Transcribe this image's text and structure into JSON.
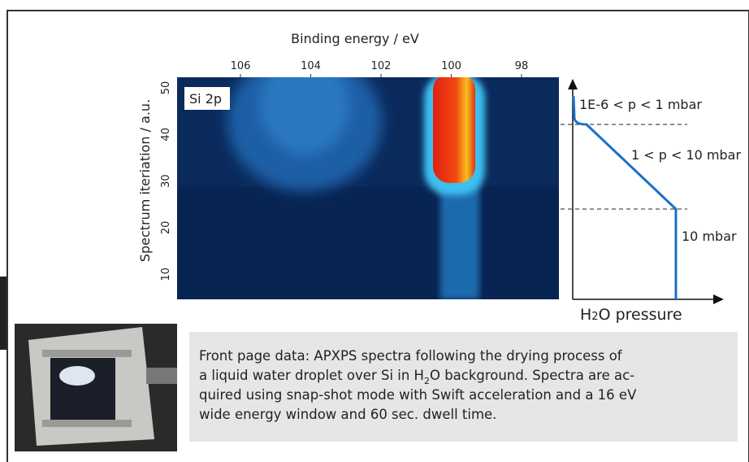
{
  "figure": {
    "x_axis_title": "Binding energy / eV",
    "x_ticks": [
      106,
      104,
      102,
      100,
      98
    ],
    "y_axis_title": "Spectrum iteriation / a.u.",
    "y_ticks": [
      50,
      40,
      30,
      20,
      10
    ],
    "panel_label": "Si 2p"
  },
  "pressure_diagram": {
    "regions": [
      "1E-6 < p < 1 mbar",
      "1 < p < 10 mbar",
      "10 mbar"
    ],
    "axis_label": {
      "main": "H",
      "sub": "2",
      "rest": "O pressure"
    }
  },
  "caption": {
    "line1": "Front page data: APXPS spectra following the drying process of",
    "line2_start": "a liquid water droplet over Si in H",
    "line2_sub": "2",
    "line2_end": "O background. Spectra are ac-",
    "line3": "quired using snap-shot mode with Swift acceleration and a 16 eV",
    "line4": "wide energy window and 60 sec. dwell time."
  }
}
